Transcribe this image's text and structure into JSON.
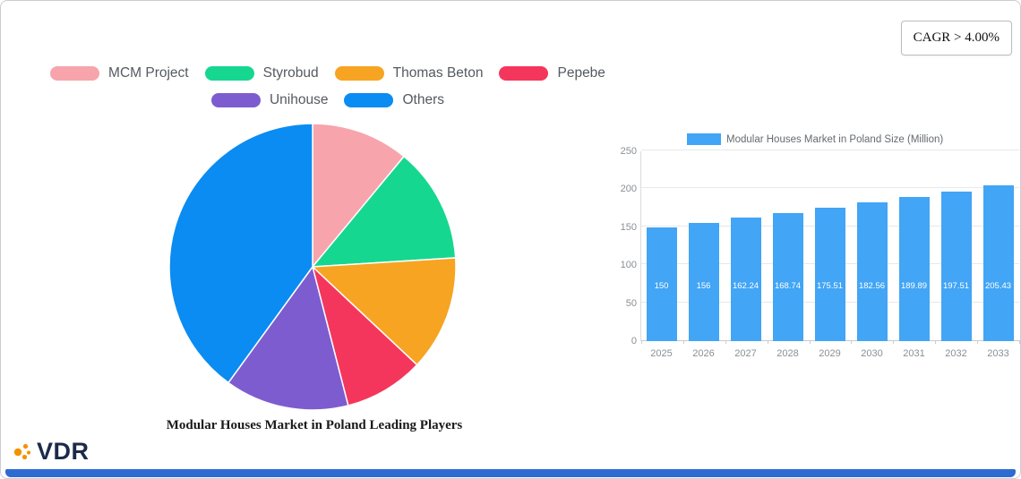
{
  "badge": {
    "cagr_label": "CAGR > 4.00%"
  },
  "logo": {
    "text": "VDR"
  },
  "chart_data": [
    {
      "type": "pie",
      "title": "Modular Houses Market in Poland Leading Players",
      "labels": [
        "MCM Project",
        "Styrobud",
        "Thomas Beton",
        "Pepebe",
        "Unihouse",
        "Others"
      ],
      "values": [
        11,
        13,
        13,
        9,
        14,
        40
      ],
      "colors": [
        "#F7A4AC",
        "#16D790",
        "#F7A422",
        "#F5365C",
        "#7D5CD0",
        "#0A8CF2"
      ],
      "legend_position": "top",
      "start_angle_deg": 0,
      "direction": "clockwise"
    },
    {
      "type": "bar",
      "legend_label": "Modular Houses Market in Poland Size (Million)",
      "categories": [
        "2025",
        "2026",
        "2027",
        "2028",
        "2029",
        "2030",
        "2031",
        "2032",
        "2033"
      ],
      "values": [
        150,
        156,
        162.24,
        168.74,
        175.51,
        182.56,
        189.89,
        197.51,
        205.43
      ],
      "value_labels": [
        "150",
        "156",
        "162.24",
        "168.74",
        "175.51",
        "182.56",
        "189.89",
        "197.51",
        "205.43"
      ],
      "bar_color": "#42a5f5",
      "ylim": [
        0,
        250
      ],
      "yticks": [
        0,
        50,
        100,
        150,
        200,
        250
      ],
      "grid": true,
      "legend_position": "top"
    }
  ]
}
